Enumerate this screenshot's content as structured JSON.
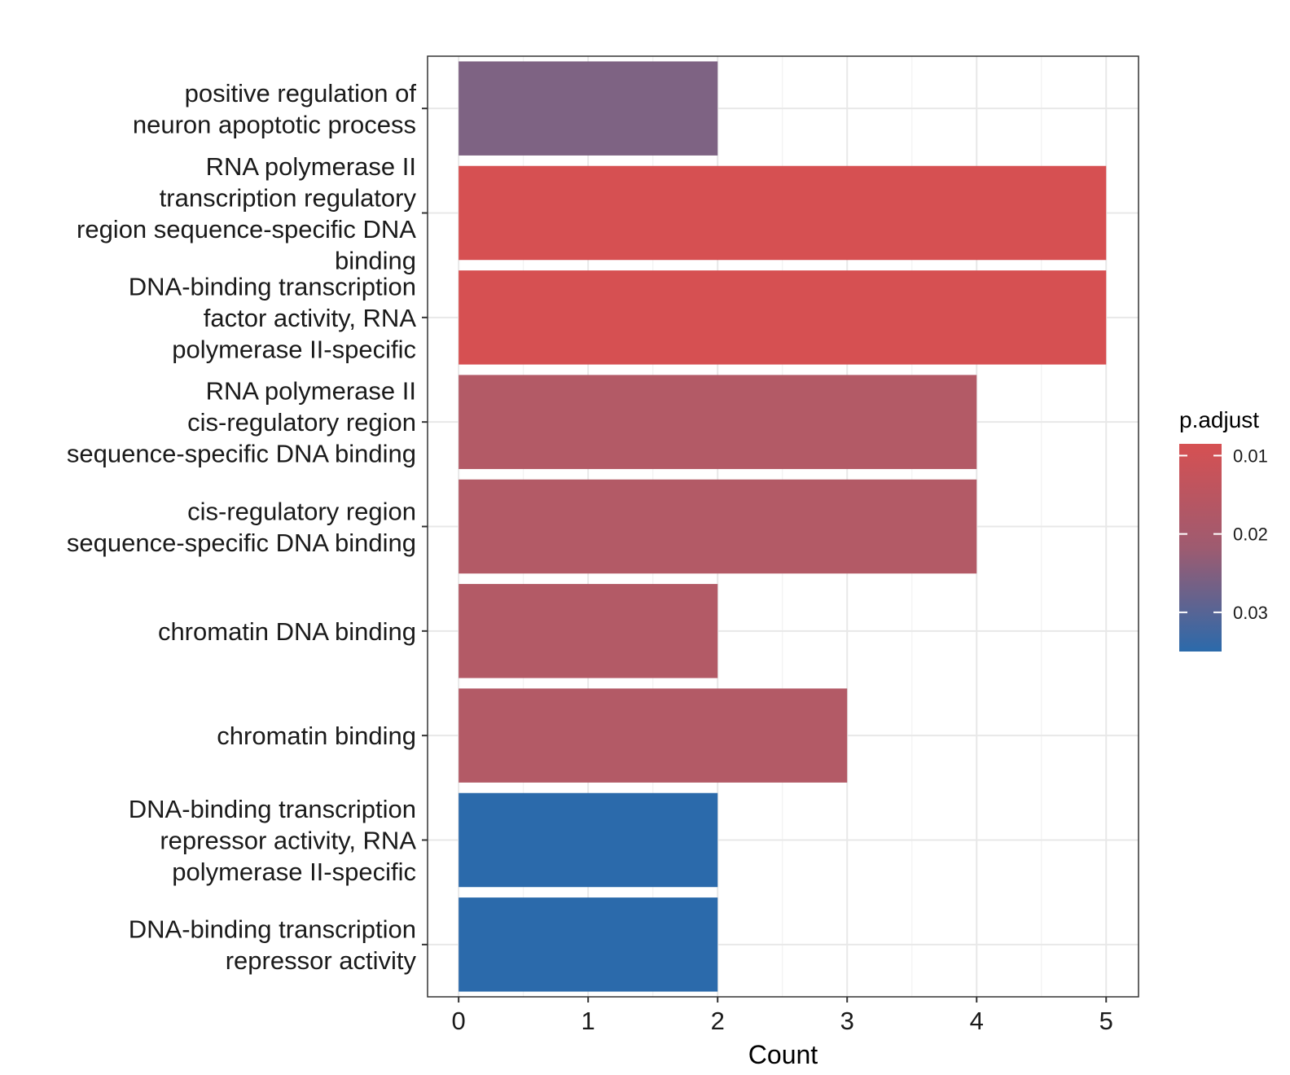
{
  "chart_data": {
    "type": "bar",
    "orientation": "horizontal",
    "categories": [
      [
        "positive regulation of",
        "neuron apoptotic process"
      ],
      [
        "RNA polymerase II",
        "transcription regulatory",
        "region sequence-specific DNA",
        "binding"
      ],
      [
        "DNA-binding transcription",
        "factor activity, RNA",
        "polymerase II-specific"
      ],
      [
        "RNA polymerase II",
        "cis-regulatory region",
        "sequence-specific DNA binding"
      ],
      [
        "cis-regulatory region",
        "sequence-specific DNA binding"
      ],
      [
        "chromatin DNA binding"
      ],
      [
        "chromatin binding"
      ],
      [
        "DNA-binding transcription",
        "repressor activity, RNA",
        "polymerase II-specific"
      ],
      [
        "DNA-binding transcription",
        "repressor activity"
      ]
    ],
    "values": [
      2,
      5,
      5,
      4,
      4,
      2,
      3,
      2,
      2
    ],
    "p_adjust": [
      0.022,
      0.0085,
      0.0085,
      0.0135,
      0.0135,
      0.0135,
      0.0135,
      0.035,
      0.035
    ],
    "bar_colors": [
      "#7E6383",
      "#D65052",
      "#D65052",
      "#B35A66",
      "#B35A66",
      "#B35A66",
      "#B35A66",
      "#2B6AAB",
      "#2B6AAB"
    ],
    "xlabel": "Count",
    "ylabel": "",
    "xlim": [
      -0.24,
      5.25
    ],
    "xticks": [
      0,
      1,
      2,
      3,
      4,
      5
    ],
    "grid": true,
    "legend": {
      "title": "p.adjust",
      "position": "right",
      "type": "colorbar",
      "range": [
        0.0085,
        0.035
      ],
      "ticks": [
        0.01,
        0.02,
        0.03
      ],
      "tick_labels": [
        "0.01",
        "0.02",
        "0.03"
      ],
      "color_low": "#D65052",
      "color_high": "#2B6AAB"
    }
  },
  "colors": {
    "panel_border": "#333333",
    "grid_major": "#E8E8E8",
    "grid_minor": "#F2F2F2"
  }
}
